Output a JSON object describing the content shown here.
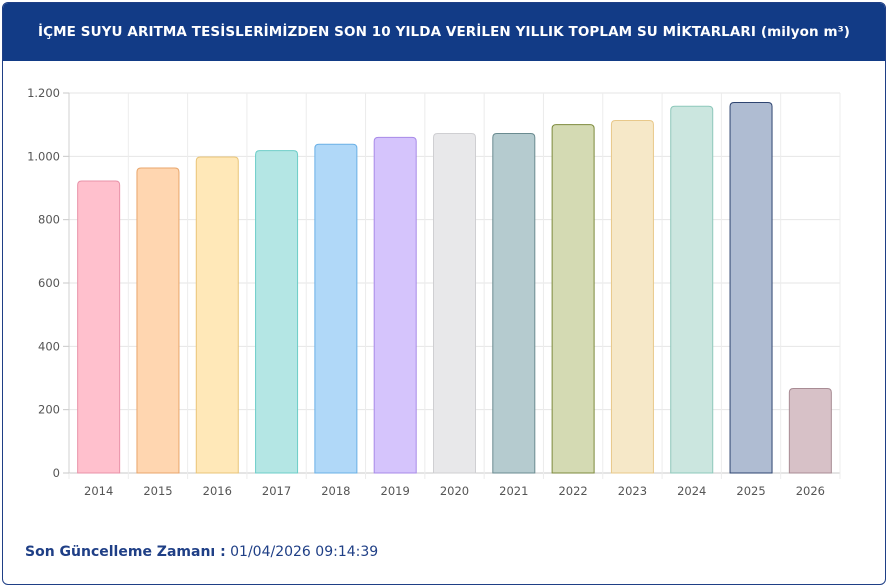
{
  "header": {
    "title": "İÇME SUYU ARITMA TESİSLERİMİZDEN SON 10 YILDA VERİLEN YILLIK TOPLAM SU MİKTARLARI (milyon m³)"
  },
  "footer": {
    "label": "Son Güncelleme Zamanı :",
    "value": "01/04/2026 09:14:39"
  },
  "chart_data": {
    "type": "bar",
    "categories": [
      "2014",
      "2015",
      "2016",
      "2017",
      "2018",
      "2019",
      "2020",
      "2021",
      "2022",
      "2023",
      "2024",
      "2025",
      "2026"
    ],
    "values": [
      922,
      963,
      998,
      1018,
      1038,
      1060,
      1072,
      1072,
      1100,
      1113,
      1158,
      1170,
      267
    ],
    "ylim": [
      0,
      1200
    ],
    "yticks": [
      0,
      200,
      400,
      600,
      800,
      1000,
      1200
    ],
    "ytick_labels": [
      "0",
      "200",
      "400",
      "600",
      "800",
      "1.000",
      "1.200"
    ],
    "grid": true,
    "colors": {
      "fill": [
        "#ffc0cd",
        "#ffd6b0",
        "#ffe8b8",
        "#b4e6e4",
        "#b0d8f8",
        "#d5c4fc",
        "#e8e8ea",
        "#b5cbcf",
        "#d4dab3",
        "#f6e8c8",
        "#cbe6df",
        "#afbcd2",
        "#d7c1c7"
      ],
      "stroke": [
        "#e892a8",
        "#e8a56b",
        "#e8c478",
        "#6ccdc8",
        "#6ab0e6",
        "#a88ae8",
        "#cfcfd2",
        "#6a8b90",
        "#7d8a3c",
        "#e8c88a",
        "#8ec8bb",
        "#2e4470",
        "#a88c94"
      ]
    }
  }
}
